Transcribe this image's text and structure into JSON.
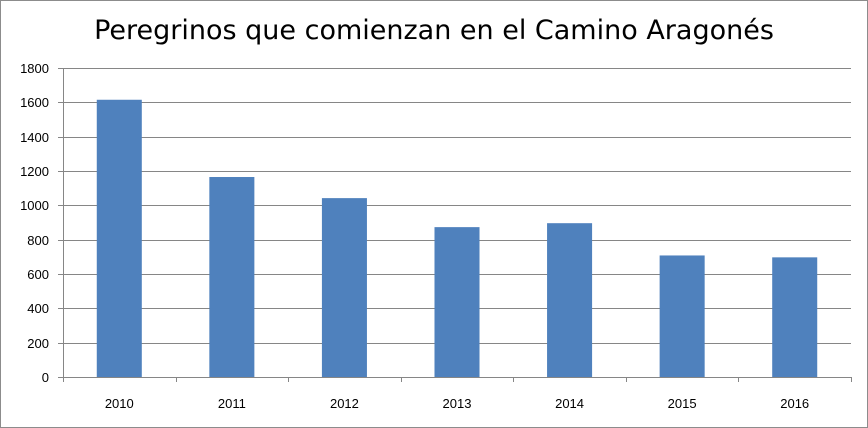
{
  "chart_data": {
    "type": "bar",
    "title": "Peregrinos que comienzan en el Camino Aragonés",
    "xlabel": "",
    "ylabel": "",
    "categories": [
      "2010",
      "2011",
      "2012",
      "2013",
      "2014",
      "2015",
      "2016"
    ],
    "values": [
      1615,
      1165,
      1042,
      873,
      896,
      708,
      697
    ],
    "ylim": [
      0,
      1800
    ],
    "yticks": [
      0,
      200,
      400,
      600,
      800,
      1000,
      1200,
      1400,
      1600,
      1800
    ],
    "grid": true,
    "legend": "none",
    "bar_color": "#4f81bd",
    "grid_color": "#868686"
  }
}
